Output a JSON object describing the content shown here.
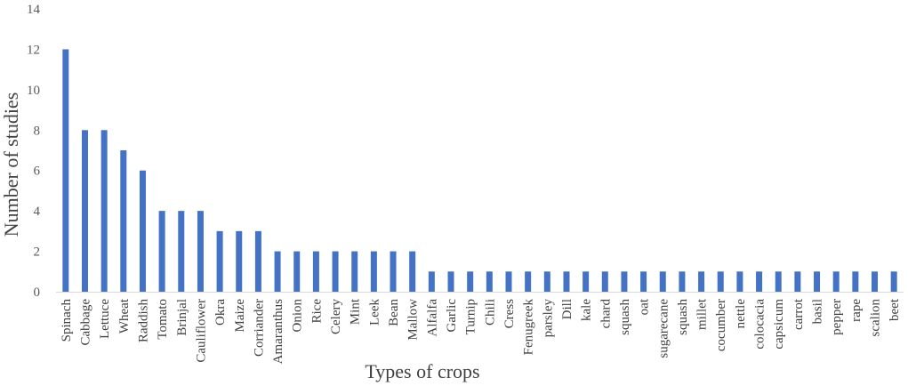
{
  "chart_data": {
    "type": "bar",
    "xlabel": "Types of crops",
    "ylabel": "Number of studies",
    "ylim": [
      0,
      14
    ],
    "yticks": [
      0,
      2,
      4,
      6,
      8,
      10,
      12,
      14
    ],
    "grid": false,
    "legend": "none",
    "bar_color": "#4472c4",
    "categories": [
      "Spinach",
      "Cabbage",
      "Lettuce",
      "Wheat",
      "Raddish",
      "Tomato",
      "Brinjal",
      "Cauliflower",
      "Okra",
      "Maize",
      "Corriander",
      "Amaranthus",
      "Onion",
      "Rice",
      "Celery",
      "Mint",
      "Leek",
      "Bean",
      "Mallow",
      "Alfalfa",
      "Garlic",
      "Turnip",
      "Chili",
      "Cress",
      "Fenugreek",
      "parsley",
      "Dill",
      "kale",
      "chard",
      "squash",
      "oat",
      "sugarecane",
      "squash",
      "millet",
      "cocumber",
      "nettle",
      "colocacia",
      "capsicum",
      "carrot",
      "basil",
      "pepper",
      "rape",
      "scalion",
      "beet"
    ],
    "values": [
      12,
      8,
      8,
      7,
      6,
      4,
      4,
      4,
      3,
      3,
      3,
      2,
      2,
      2,
      2,
      2,
      2,
      2,
      2,
      1,
      1,
      1,
      1,
      1,
      1,
      1,
      1,
      1,
      1,
      1,
      1,
      1,
      1,
      1,
      1,
      1,
      1,
      1,
      1,
      1,
      1,
      1,
      1,
      1
    ]
  }
}
